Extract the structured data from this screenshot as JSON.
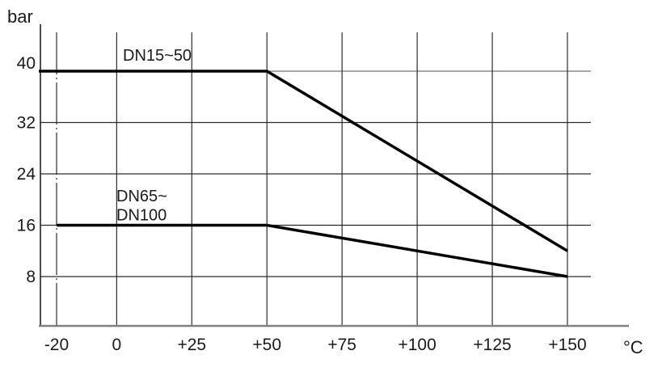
{
  "chart_data": {
    "type": "line",
    "xlabel": "°C",
    "ylabel": "bar",
    "xlim": [
      -20,
      150
    ],
    "ylim": [
      0,
      46
    ],
    "grid": true,
    "legend_position": "inline-labels",
    "x_ticks": [
      {
        "value": -20,
        "label": "-20",
        "grid_style": "dashdot"
      },
      {
        "value": 0,
        "label": "0"
      },
      {
        "value": 25,
        "label": "+25"
      },
      {
        "value": 50,
        "label": "+50"
      },
      {
        "value": 75,
        "label": "+75"
      },
      {
        "value": 100,
        "label": "+100"
      },
      {
        "value": 125,
        "label": "+125"
      },
      {
        "value": 150,
        "label": "+150"
      }
    ],
    "y_ticks": [
      {
        "value": 8,
        "label": "8"
      },
      {
        "value": 16,
        "label": "16"
      },
      {
        "value": 24,
        "label": "24"
      },
      {
        "value": 32,
        "label": "32"
      },
      {
        "value": 40,
        "label": "40",
        "grid_color": "#8c8c8c"
      }
    ],
    "series": [
      {
        "name": "DN15~50",
        "label_lines": [
          "DN15~50"
        ],
        "points": [
          [
            -20,
            40
          ],
          [
            50,
            40
          ],
          [
            150,
            12
          ]
        ],
        "color": "#000000",
        "extend_left_to_axis": true
      },
      {
        "name": "DN65~DN100",
        "label_lines": [
          "DN65~",
          "DN100"
        ],
        "points": [
          [
            -20,
            16
          ],
          [
            50,
            16
          ],
          [
            150,
            8
          ]
        ],
        "color": "#000000",
        "extend_left_to_axis": false
      }
    ],
    "colors": {
      "curve": "#000000",
      "grid": "#2b2b2b",
      "axis": "#808080",
      "text": "#1a1a1a"
    }
  }
}
